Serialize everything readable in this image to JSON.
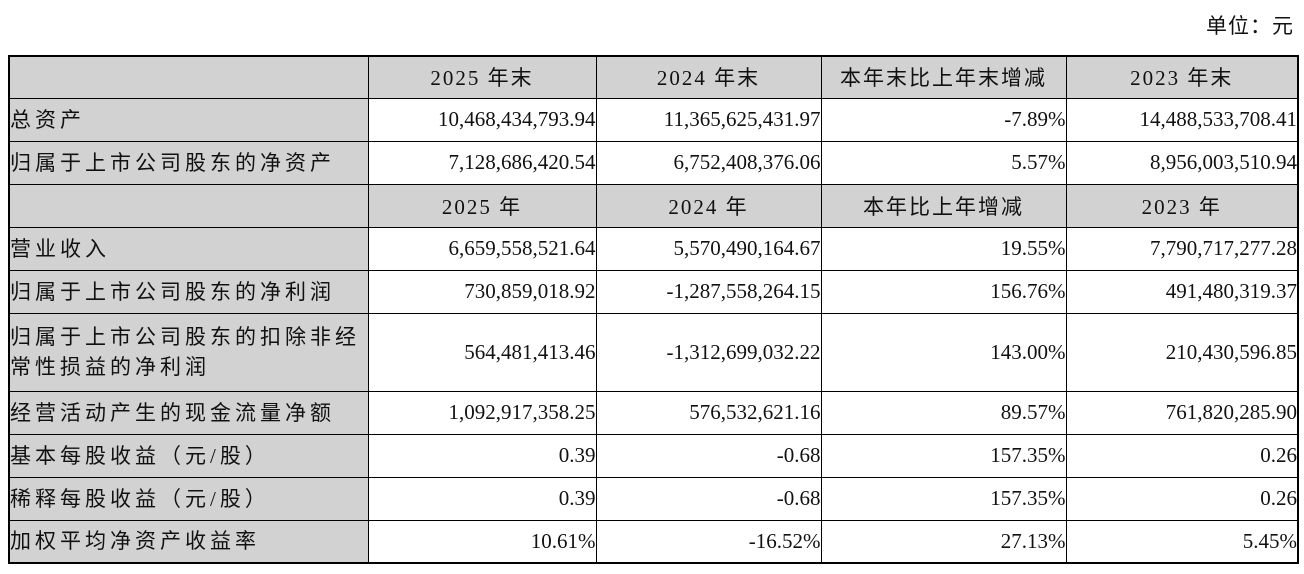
{
  "unit_label": "单位：元",
  "colors": {
    "header_fill": "#d2d2d2",
    "border": "#000000",
    "text": "#111111",
    "background": "#ffffff"
  },
  "table": {
    "rows": [
      {
        "type": "header",
        "cells": [
          "",
          "2025 年末",
          "2024 年末",
          "本年末比上年末增减",
          "2023 年末"
        ]
      },
      {
        "type": "data",
        "label": "总资产",
        "values": [
          "10,468,434,793.94",
          "11,365,625,431.97",
          "-7.89%",
          "14,488,533,708.41"
        ]
      },
      {
        "type": "data",
        "label": "归属于上市公司股东的净资产",
        "values": [
          "7,128,686,420.54",
          "6,752,408,376.06",
          "5.57%",
          "8,956,003,510.94"
        ]
      },
      {
        "type": "header",
        "cells": [
          "",
          "2025 年",
          "2024 年",
          "本年比上年增减",
          "2023 年"
        ]
      },
      {
        "type": "data",
        "label": "营业收入",
        "values": [
          "6,659,558,521.64",
          "5,570,490,164.67",
          "19.55%",
          "7,790,717,277.28"
        ]
      },
      {
        "type": "data",
        "label": "归属于上市公司股东的净利润",
        "values": [
          "730,859,018.92",
          "-1,287,558,264.15",
          "156.76%",
          "491,480,319.37"
        ]
      },
      {
        "type": "data",
        "tall": true,
        "label": "归属于上市公司股东的扣除非经常性损益的净利润",
        "values": [
          "564,481,413.46",
          "-1,312,699,032.22",
          "143.00%",
          "210,430,596.85"
        ]
      },
      {
        "type": "data",
        "label": "经营活动产生的现金流量净额",
        "values": [
          "1,092,917,358.25",
          "576,532,621.16",
          "89.57%",
          "761,820,285.90"
        ]
      },
      {
        "type": "data",
        "label": "基本每股收益（元/股）",
        "values": [
          "0.39",
          "-0.68",
          "157.35%",
          "0.26"
        ]
      },
      {
        "type": "data",
        "label": "稀释每股收益（元/股）",
        "values": [
          "0.39",
          "-0.68",
          "157.35%",
          "0.26"
        ]
      },
      {
        "type": "data",
        "label": "加权平均净资产收益率",
        "values": [
          "10.61%",
          "-16.52%",
          "27.13%",
          "5.45%"
        ]
      }
    ]
  }
}
